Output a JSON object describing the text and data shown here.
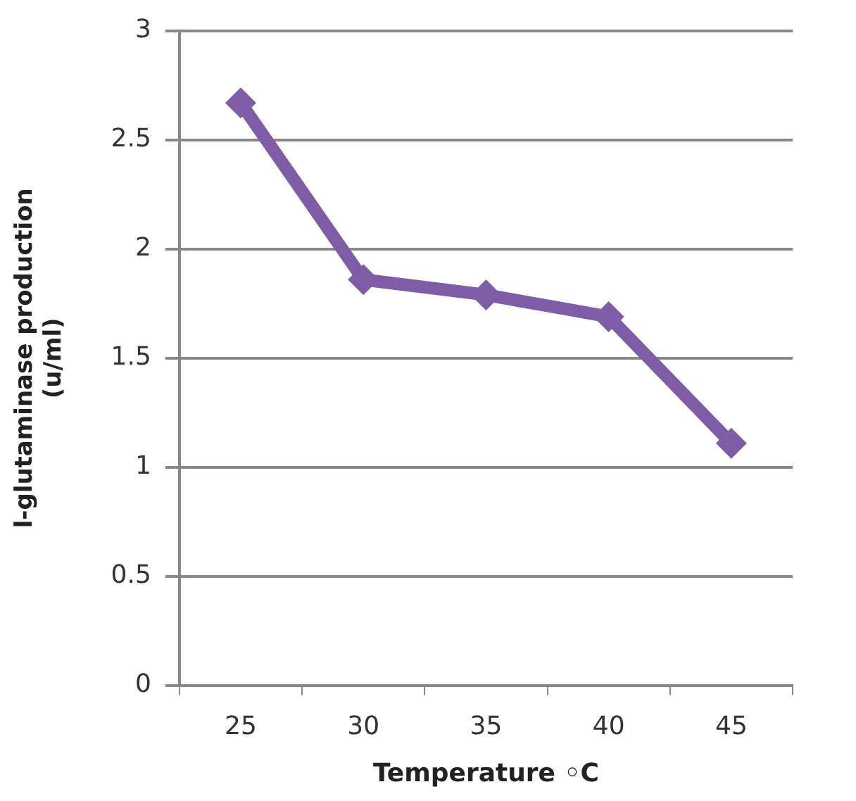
{
  "chart_data": {
    "type": "line",
    "xlabel": "Temperature ◦C",
    "ylabel": "l-glutaminase production\n(u/ml)",
    "categories": [
      "25",
      "30",
      "35",
      "40",
      "45"
    ],
    "series": [
      {
        "color": "#7e5ca6",
        "values": [
          2.67,
          1.86,
          1.79,
          1.69,
          1.11
        ]
      }
    ],
    "ylim": [
      0,
      3
    ],
    "yticks": [
      0,
      0.5,
      1,
      1.5,
      2,
      2.5,
      3
    ],
    "grid": "y",
    "legend": false,
    "marker": "diamond",
    "line_style": "solid"
  }
}
